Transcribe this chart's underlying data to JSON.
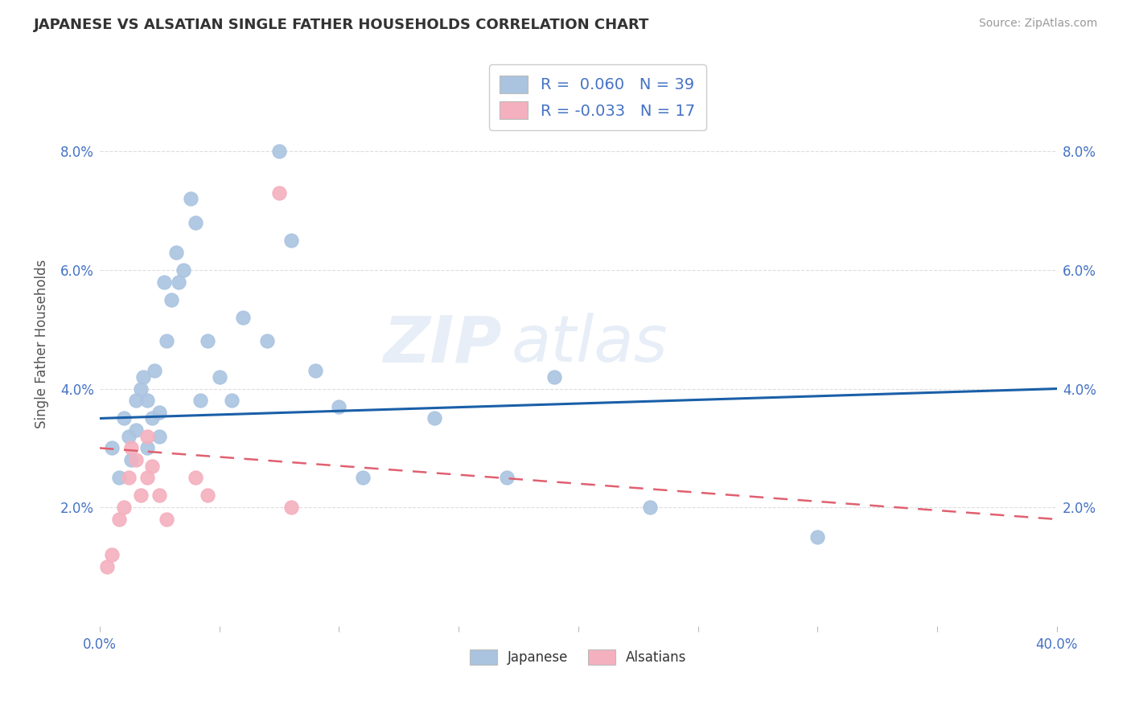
{
  "title": "JAPANESE VS ALSATIAN SINGLE FATHER HOUSEHOLDS CORRELATION CHART",
  "source": "Source: ZipAtlas.com",
  "ylabel": "Single Father Households",
  "xlim": [
    0.0,
    0.4
  ],
  "ylim": [
    0.0,
    0.095
  ],
  "yticks": [
    0.02,
    0.04,
    0.06,
    0.08
  ],
  "ytick_labels": [
    "2.0%",
    "4.0%",
    "6.0%",
    "8.0%"
  ],
  "xticks": [
    0.0,
    0.05,
    0.1,
    0.15,
    0.2,
    0.25,
    0.3,
    0.35,
    0.4
  ],
  "xtick_labels": [
    "0.0%",
    "",
    "",
    "",
    "",
    "",
    "",
    "",
    "40.0%"
  ],
  "watermark_part1": "ZIP",
  "watermark_part2": "atlas",
  "japanese_R": 0.06,
  "japanese_N": 39,
  "alsatian_R": -0.033,
  "alsatian_N": 17,
  "japanese_color": "#aac4e0",
  "alsatian_color": "#f4b0be",
  "japanese_line_color": "#1a5fa8",
  "alsatian_line_color": "#e06070",
  "background_color": "#ffffff",
  "grid_color": "#dddddd",
  "japanese_x": [
    0.005,
    0.008,
    0.01,
    0.012,
    0.013,
    0.015,
    0.015,
    0.017,
    0.018,
    0.02,
    0.02,
    0.022,
    0.023,
    0.025,
    0.025,
    0.027,
    0.028,
    0.03,
    0.032,
    0.033,
    0.035,
    0.038,
    0.04,
    0.042,
    0.045,
    0.05,
    0.055,
    0.06,
    0.07,
    0.075,
    0.08,
    0.09,
    0.1,
    0.11,
    0.14,
    0.17,
    0.19,
    0.23,
    0.3
  ],
  "japanese_y": [
    0.03,
    0.025,
    0.035,
    0.032,
    0.028,
    0.038,
    0.033,
    0.04,
    0.042,
    0.038,
    0.03,
    0.035,
    0.043,
    0.036,
    0.032,
    0.058,
    0.048,
    0.055,
    0.063,
    0.058,
    0.06,
    0.072,
    0.068,
    0.038,
    0.048,
    0.042,
    0.038,
    0.052,
    0.048,
    0.08,
    0.065,
    0.043,
    0.037,
    0.025,
    0.035,
    0.025,
    0.042,
    0.02,
    0.015
  ],
  "alsatian_x": [
    0.003,
    0.005,
    0.008,
    0.01,
    0.012,
    0.013,
    0.015,
    0.017,
    0.02,
    0.02,
    0.022,
    0.025,
    0.028,
    0.04,
    0.045,
    0.075,
    0.08
  ],
  "alsatian_y": [
    0.01,
    0.012,
    0.018,
    0.02,
    0.025,
    0.03,
    0.028,
    0.022,
    0.032,
    0.025,
    0.027,
    0.022,
    0.018,
    0.025,
    0.022,
    0.073,
    0.02
  ],
  "japanese_trendline_x": [
    0.0,
    0.4
  ],
  "japanese_trendline_y": [
    0.035,
    0.04
  ],
  "alsatian_trendline_x": [
    0.0,
    0.4
  ],
  "alsatian_trendline_y": [
    0.03,
    0.018
  ]
}
